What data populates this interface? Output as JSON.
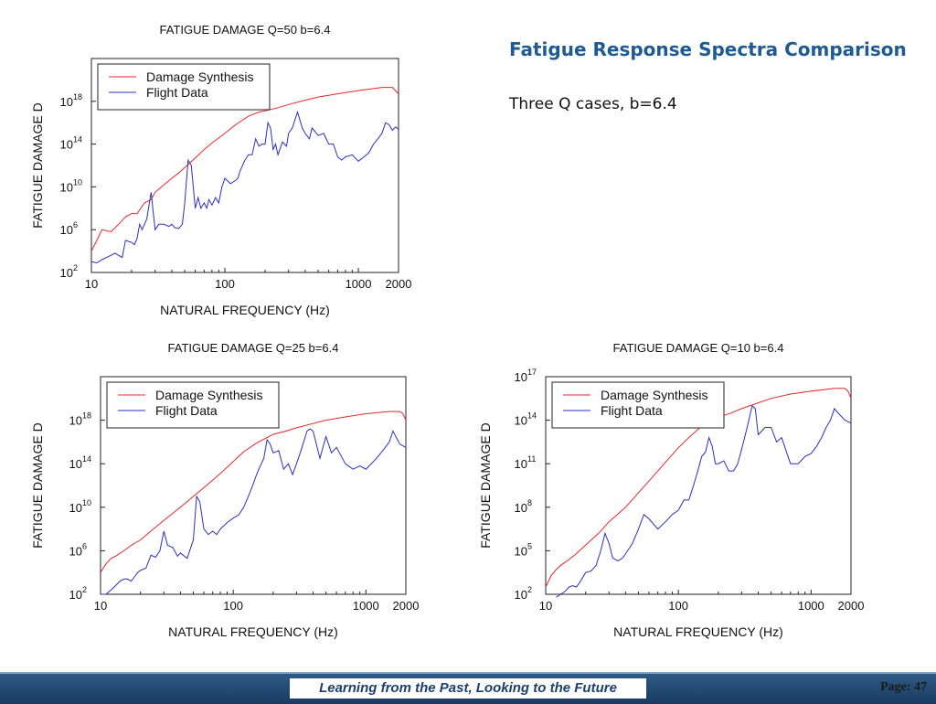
{
  "slide": {
    "title": "Fatigue Response Spectra Comparison",
    "subtitle": "Three Q cases, b=6.4"
  },
  "footer": {
    "tagline": "Learning from the Past, Looking to the Future",
    "page": "Page: 47"
  },
  "colors": {
    "damage_synthesis": "#e8262b",
    "flight_data": "#2a2fbf",
    "footer_band": "#1f4670",
    "title": "#1f5b92"
  },
  "chart_data": [
    {
      "type": "line",
      "title": "FATIGUE DAMAGE   Q=50   b=6.4",
      "xlabel": "NATURAL FREQUENCY (Hz)",
      "ylabel": "FATIGUE DAMAGE D",
      "x_scale": "log",
      "y_scale": "log",
      "xlim": [
        10,
        2000
      ],
      "ylim_exp": [
        2,
        22
      ],
      "x_ticks": [
        {
          "v": 10,
          "label": "10"
        },
        {
          "v": 100,
          "label": "100"
        },
        {
          "v": 1000,
          "label": "1000"
        },
        {
          "v": 2000,
          "label": "2000"
        }
      ],
      "y_ticks": [
        {
          "exp": 2,
          "base": "10",
          "sup": "2"
        },
        {
          "exp": 6,
          "base": "10",
          "sup": "6"
        },
        {
          "exp": 10,
          "base": "10",
          "sup": "10"
        },
        {
          "exp": 14,
          "base": "10",
          "sup": "14"
        },
        {
          "exp": 18,
          "base": "10",
          "sup": "18"
        }
      ],
      "legend": {
        "position": "top-left",
        "entries": [
          "Damage Synthesis",
          "Flight Data"
        ]
      },
      "series": [
        {
          "name": "Damage Synthesis",
          "color": "#e8262b",
          "x": [
            10,
            11,
            12,
            14,
            16,
            18,
            20,
            22,
            25,
            28,
            30,
            35,
            40,
            45,
            50,
            60,
            70,
            80,
            100,
            120,
            150,
            180,
            200,
            250,
            300,
            400,
            500,
            700,
            1000,
            1500,
            1800,
            2000
          ],
          "y_exp": [
            4.0,
            5.0,
            6.0,
            5.8,
            6.5,
            7.2,
            7.5,
            7.5,
            8.5,
            8.8,
            9.5,
            10.2,
            10.8,
            11.3,
            11.8,
            12.7,
            13.5,
            14.1,
            15.0,
            15.8,
            16.6,
            17.0,
            17.1,
            17.4,
            17.7,
            18.1,
            18.4,
            18.7,
            19.0,
            19.3,
            19.3,
            18.7
          ]
        },
        {
          "name": "Flight Data",
          "color": "#2a2fbf",
          "x": [
            10,
            11,
            12,
            13,
            14,
            15,
            16,
            17,
            18,
            19,
            20,
            21,
            22,
            23,
            24,
            26,
            28,
            30,
            32,
            35,
            38,
            40,
            42,
            45,
            48,
            50,
            53,
            56,
            60,
            63,
            66,
            70,
            73,
            76,
            80,
            85,
            90,
            95,
            100,
            110,
            120,
            125,
            130,
            140,
            150,
            160,
            170,
            180,
            190,
            200,
            210,
            220,
            230,
            240,
            250,
            270,
            290,
            300,
            320,
            350,
            380,
            400,
            430,
            450,
            500,
            550,
            600,
            650,
            700,
            750,
            800,
            900,
            1000,
            1100,
            1200,
            1300,
            1400,
            1500,
            1600,
            1700,
            1800,
            1900,
            2000
          ],
          "y_exp": [
            3.0,
            2.9,
            3.2,
            3.4,
            3.6,
            3.8,
            3.6,
            3.4,
            5.0,
            4.9,
            4.8,
            4.6,
            5.2,
            6.5,
            6.0,
            7.0,
            9.5,
            6.0,
            6.5,
            6.5,
            6.3,
            6.5,
            6.2,
            6.1,
            6.5,
            8.5,
            12.5,
            12.0,
            8.0,
            9.0,
            8.0,
            8.5,
            8.0,
            8.8,
            8.3,
            9.0,
            8.5,
            10.0,
            10.8,
            10.3,
            10.6,
            10.8,
            11.5,
            12.4,
            13.0,
            13.0,
            14.5,
            13.8,
            14.0,
            14.0,
            16.0,
            15.5,
            13.5,
            14.0,
            13.0,
            14.2,
            13.8,
            15.0,
            15.5,
            17.0,
            15.5,
            15.0,
            14.5,
            15.5,
            14.8,
            15.0,
            14.0,
            14.0,
            12.8,
            12.5,
            12.8,
            13.0,
            12.4,
            12.8,
            13.2,
            14.0,
            14.5,
            15.0,
            16.0,
            15.8,
            15.3,
            15.6,
            15.4
          ]
        }
      ]
    },
    {
      "type": "line",
      "title": "FATIGUE DAMAGE   Q=25   b=6.4",
      "xlabel": "NATURAL FREQUENCY (Hz)",
      "ylabel": "FATIGUE DAMAGE D",
      "x_scale": "log",
      "y_scale": "log",
      "xlim": [
        10,
        2000
      ],
      "ylim_exp": [
        2,
        22
      ],
      "x_ticks": [
        {
          "v": 10,
          "label": "10"
        },
        {
          "v": 100,
          "label": "100"
        },
        {
          "v": 1000,
          "label": "1000"
        },
        {
          "v": 2000,
          "label": "2000"
        }
      ],
      "y_ticks": [
        {
          "exp": 2,
          "base": "10",
          "sup": "2"
        },
        {
          "exp": 6,
          "base": "10",
          "sup": "6"
        },
        {
          "exp": 10,
          "base": "10",
          "sup": "10"
        },
        {
          "exp": 14,
          "base": "10",
          "sup": "14"
        },
        {
          "exp": 18,
          "base": "10",
          "sup": "18"
        }
      ],
      "legend": {
        "position": "top-left",
        "entries": [
          "Damage Synthesis",
          "Flight Data"
        ]
      },
      "series": [
        {
          "name": "Damage Synthesis",
          "color": "#e8262b",
          "x": [
            10,
            11,
            12,
            13,
            15,
            17,
            20,
            25,
            30,
            40,
            50,
            60,
            70,
            80,
            100,
            120,
            150,
            180,
            200,
            250,
            300,
            400,
            500,
            700,
            1000,
            1500,
            1800,
            1900,
            2000
          ],
          "y_exp": [
            4.0,
            4.8,
            5.3,
            5.5,
            6.0,
            6.5,
            7.0,
            8.0,
            8.8,
            10.0,
            11.0,
            11.8,
            12.5,
            13.1,
            14.2,
            15.1,
            15.9,
            16.4,
            16.7,
            17.0,
            17.3,
            17.7,
            18.0,
            18.3,
            18.6,
            18.8,
            18.8,
            18.6,
            18.0
          ]
        },
        {
          "name": "Flight Data",
          "color": "#2a2fbf",
          "x": [
            10,
            11,
            12,
            13,
            14,
            15,
            16,
            17,
            18,
            19,
            20,
            22,
            24,
            26,
            28,
            30,
            32,
            35,
            38,
            40,
            45,
            50,
            53,
            56,
            60,
            65,
            70,
            75,
            80,
            85,
            90,
            100,
            110,
            120,
            130,
            140,
            150,
            160,
            170,
            180,
            190,
            200,
            220,
            240,
            260,
            280,
            300,
            330,
            360,
            380,
            400,
            450,
            500,
            550,
            600,
            700,
            800,
            900,
            1000,
            1100,
            1200,
            1300,
            1400,
            1500,
            1600,
            1800,
            2000
          ],
          "y_exp": [
            2.0,
            2.0,
            2.4,
            2.8,
            3.2,
            3.4,
            3.4,
            3.2,
            3.6,
            4.0,
            4.2,
            4.4,
            5.6,
            5.4,
            6.0,
            7.8,
            6.5,
            6.3,
            5.5,
            5.8,
            5.3,
            7.0,
            11.0,
            10.5,
            8.0,
            7.5,
            7.8,
            7.5,
            8.0,
            8.3,
            8.6,
            9.0,
            9.3,
            10.0,
            11.0,
            12.0,
            13.0,
            13.8,
            14.5,
            16.2,
            15.8,
            15.0,
            15.2,
            13.5,
            14.0,
            13.0,
            14.0,
            15.5,
            17.0,
            17.2,
            17.0,
            14.5,
            16.5,
            15.0,
            15.5,
            14.0,
            13.5,
            13.8,
            13.5,
            14.0,
            14.5,
            15.0,
            15.5,
            16.0,
            17.0,
            15.8,
            15.5
          ]
        }
      ]
    },
    {
      "type": "line",
      "title": "FATIGUE DAMAGE   Q=10   b=6.4",
      "xlabel": "NATURAL FREQUENCY (Hz)",
      "ylabel": "FATIGUE DAMAGE D",
      "x_scale": "log",
      "y_scale": "log",
      "xlim": [
        10,
        2000
      ],
      "ylim_exp": [
        2,
        17
      ],
      "x_ticks": [
        {
          "v": 10,
          "label": "10"
        },
        {
          "v": 100,
          "label": "100"
        },
        {
          "v": 1000,
          "label": "1000"
        },
        {
          "v": 2000,
          "label": "2000"
        }
      ],
      "y_ticks": [
        {
          "exp": 2,
          "base": "10",
          "sup": "2"
        },
        {
          "exp": 5,
          "base": "10",
          "sup": "5"
        },
        {
          "exp": 8,
          "base": "10",
          "sup": "8"
        },
        {
          "exp": 11,
          "base": "10",
          "sup": "11"
        },
        {
          "exp": 14,
          "base": "10",
          "sup": "14"
        },
        {
          "exp": 17,
          "base": "10",
          "sup": "17"
        }
      ],
      "legend": {
        "position": "top-left",
        "entries": [
          "Damage Synthesis",
          "Flight Data"
        ]
      },
      "series": [
        {
          "name": "Damage Synthesis",
          "color": "#e8262b",
          "x": [
            10,
            11,
            12,
            13,
            15,
            17,
            20,
            25,
            30,
            40,
            50,
            60,
            70,
            80,
            100,
            120,
            150,
            180,
            200,
            250,
            300,
            400,
            500,
            700,
            1000,
            1500,
            1800,
            1900,
            2000
          ],
          "y_exp": [
            2.5,
            3.3,
            3.7,
            4.0,
            4.4,
            4.8,
            5.4,
            6.2,
            7.0,
            8.0,
            9.0,
            9.8,
            10.5,
            11.1,
            12.1,
            12.8,
            13.6,
            14.0,
            14.2,
            14.5,
            14.8,
            15.2,
            15.5,
            15.8,
            16.0,
            16.2,
            16.2,
            16.0,
            15.5
          ]
        },
        {
          "name": "Flight Data",
          "color": "#2a2fbf",
          "x": [
            12,
            13,
            14,
            15,
            16,
            17,
            18,
            20,
            22,
            24,
            26,
            28,
            30,
            32,
            35,
            38,
            40,
            45,
            50,
            55,
            60,
            70,
            80,
            90,
            100,
            110,
            120,
            130,
            140,
            150,
            160,
            170,
            180,
            190,
            200,
            220,
            240,
            260,
            280,
            300,
            330,
            360,
            380,
            400,
            450,
            500,
            550,
            600,
            700,
            800,
            900,
            1000,
            1100,
            1200,
            1300,
            1400,
            1500,
            1600,
            1800,
            2000
          ],
          "y_exp": [
            1.8,
            2.0,
            2.2,
            2.5,
            2.6,
            2.5,
            2.8,
            3.5,
            3.6,
            4.0,
            5.0,
            6.2,
            5.5,
            4.5,
            4.3,
            4.5,
            4.8,
            5.5,
            6.5,
            7.5,
            7.2,
            6.5,
            7.0,
            7.5,
            7.8,
            8.5,
            8.5,
            9.5,
            10.5,
            11.5,
            11.8,
            12.8,
            12.2,
            11.0,
            11.0,
            11.2,
            10.5,
            10.5,
            11.0,
            12.0,
            13.5,
            15.0,
            14.8,
            13.0,
            13.5,
            13.5,
            12.5,
            12.8,
            11.0,
            11.0,
            11.5,
            11.7,
            12.2,
            12.8,
            13.5,
            14.0,
            14.8,
            14.5,
            14.0,
            13.8
          ]
        }
      ]
    }
  ]
}
